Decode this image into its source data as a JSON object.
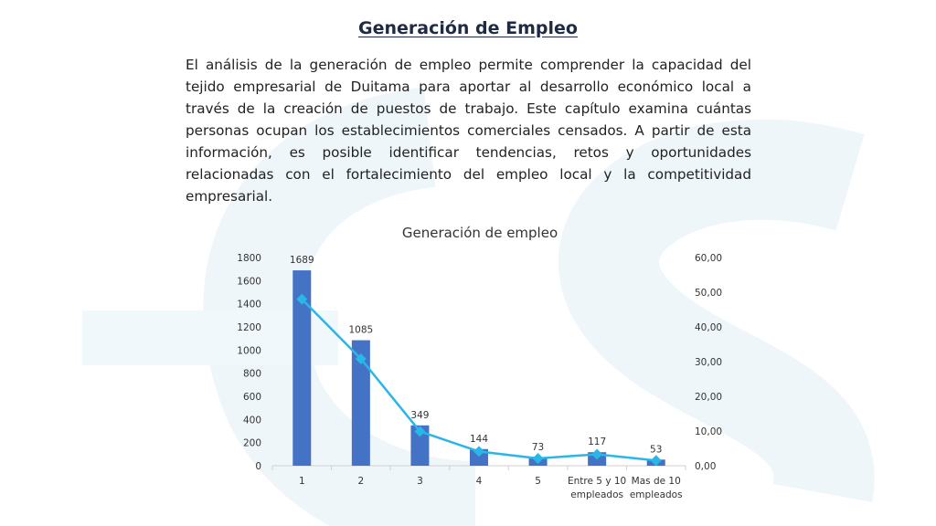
{
  "slide": {
    "heading": "Generación de Empleo",
    "paragraph": "El análisis de la generación de empleo permite comprender la capacidad del tejido empresarial de Duitama para aportar al desarrollo económico local a través de la creación de puestos de trabajo. Este capítulo examina cuántas personas ocupan los establecimientos comerciales censados. A partir de esta información, es posible identificar tendencias, retos y oportunidades relacionadas con el fortalecimiento del empleo local y la competitividad empresarial."
  },
  "chart_data": {
    "type": "bar",
    "title": "Generación de empleo",
    "categories": [
      [
        "1"
      ],
      [
        "2"
      ],
      [
        "3"
      ],
      [
        "4"
      ],
      [
        "5"
      ],
      [
        "Entre 5 y 10",
        "empleados"
      ],
      [
        "Mas de 10",
        "empleados"
      ]
    ],
    "series": [
      {
        "type": "bar",
        "axis": "left",
        "color": "#4472c4",
        "values": [
          1689,
          1085,
          349,
          144,
          73,
          117,
          53
        ],
        "labels": [
          "1689",
          "1085",
          "349",
          "144",
          "73",
          "117",
          "53"
        ]
      },
      {
        "type": "line",
        "axis": "right",
        "color": "#29b6e8",
        "marker": "diamond",
        "values": [
          48.0,
          30.8,
          9.9,
          4.1,
          2.1,
          3.3,
          1.5
        ]
      }
    ],
    "y_left": {
      "min": 0,
      "max": 1800,
      "step": 200,
      "ticks": [
        "0",
        "200",
        "400",
        "600",
        "800",
        "1000",
        "1200",
        "1400",
        "1600",
        "1800"
      ]
    },
    "y_right": {
      "min": 0,
      "max": 60,
      "step": 10,
      "ticks": [
        "0,00",
        "10,00",
        "20,00",
        "30,00",
        "40,00",
        "50,00",
        "60,00"
      ]
    },
    "grid": false,
    "legend": "none"
  }
}
